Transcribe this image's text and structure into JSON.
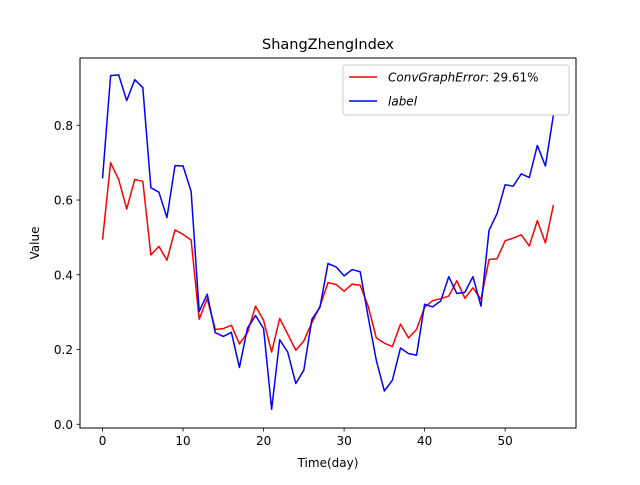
{
  "chart_data": {
    "type": "line",
    "title": "ShangZhengIndex",
    "xlabel": "Time(day)",
    "ylabel": "Value",
    "xlim": [
      -2.8,
      58.8
    ],
    "ylim": [
      -0.01,
      0.98
    ],
    "xticks": [
      0,
      10,
      20,
      30,
      40,
      50
    ],
    "yticks": [
      0.0,
      0.2,
      0.4,
      0.6,
      0.8
    ],
    "ytick_labels": [
      "0.0",
      "0.2",
      "0.4",
      "0.6",
      "0.8"
    ],
    "grid": false,
    "legend_position": "upper right",
    "x": [
      0,
      1,
      2,
      3,
      4,
      5,
      6,
      7,
      8,
      9,
      10,
      11,
      12,
      13,
      14,
      15,
      16,
      17,
      18,
      19,
      20,
      21,
      22,
      23,
      24,
      25,
      26,
      27,
      28,
      29,
      30,
      31,
      32,
      33,
      34,
      35,
      36,
      37,
      38,
      39,
      40,
      41,
      42,
      43,
      44,
      45,
      46,
      47,
      48,
      49,
      50,
      51,
      52,
      53,
      54,
      55,
      56
    ],
    "series": [
      {
        "name": "ConvGraphError: 29.61%",
        "legend_label": "ConvGraphError",
        "legend_suffix": ": 29.61%",
        "color": "#ff0000",
        "values": [
          0.494,
          0.7,
          0.655,
          0.576,
          0.655,
          0.65,
          0.453,
          0.476,
          0.439,
          0.52,
          0.508,
          0.493,
          0.281,
          0.336,
          0.254,
          0.256,
          0.265,
          0.215,
          0.245,
          0.316,
          0.278,
          0.193,
          0.283,
          0.241,
          0.198,
          0.223,
          0.272,
          0.316,
          0.379,
          0.374,
          0.356,
          0.375,
          0.372,
          0.315,
          0.231,
          0.217,
          0.208,
          0.268,
          0.231,
          0.254,
          0.313,
          0.331,
          0.336,
          0.343,
          0.384,
          0.337,
          0.365,
          0.334,
          0.441,
          0.443,
          0.491,
          0.498,
          0.507,
          0.477,
          0.545,
          0.485,
          0.587
        ]
      },
      {
        "name": "label",
        "legend_label": "label",
        "legend_suffix": "",
        "color": "#0000ff",
        "values": [
          0.658,
          0.933,
          0.935,
          0.866,
          0.922,
          0.901,
          0.633,
          0.621,
          0.553,
          0.692,
          0.691,
          0.623,
          0.302,
          0.348,
          0.245,
          0.235,
          0.246,
          0.152,
          0.257,
          0.291,
          0.256,
          0.04,
          0.226,
          0.193,
          0.109,
          0.145,
          0.281,
          0.313,
          0.43,
          0.421,
          0.397,
          0.414,
          0.408,
          0.286,
          0.171,
          0.089,
          0.118,
          0.204,
          0.189,
          0.185,
          0.321,
          0.314,
          0.33,
          0.395,
          0.35,
          0.353,
          0.395,
          0.316,
          0.519,
          0.564,
          0.641,
          0.637,
          0.67,
          0.66,
          0.746,
          0.691,
          0.828
        ]
      }
    ]
  }
}
